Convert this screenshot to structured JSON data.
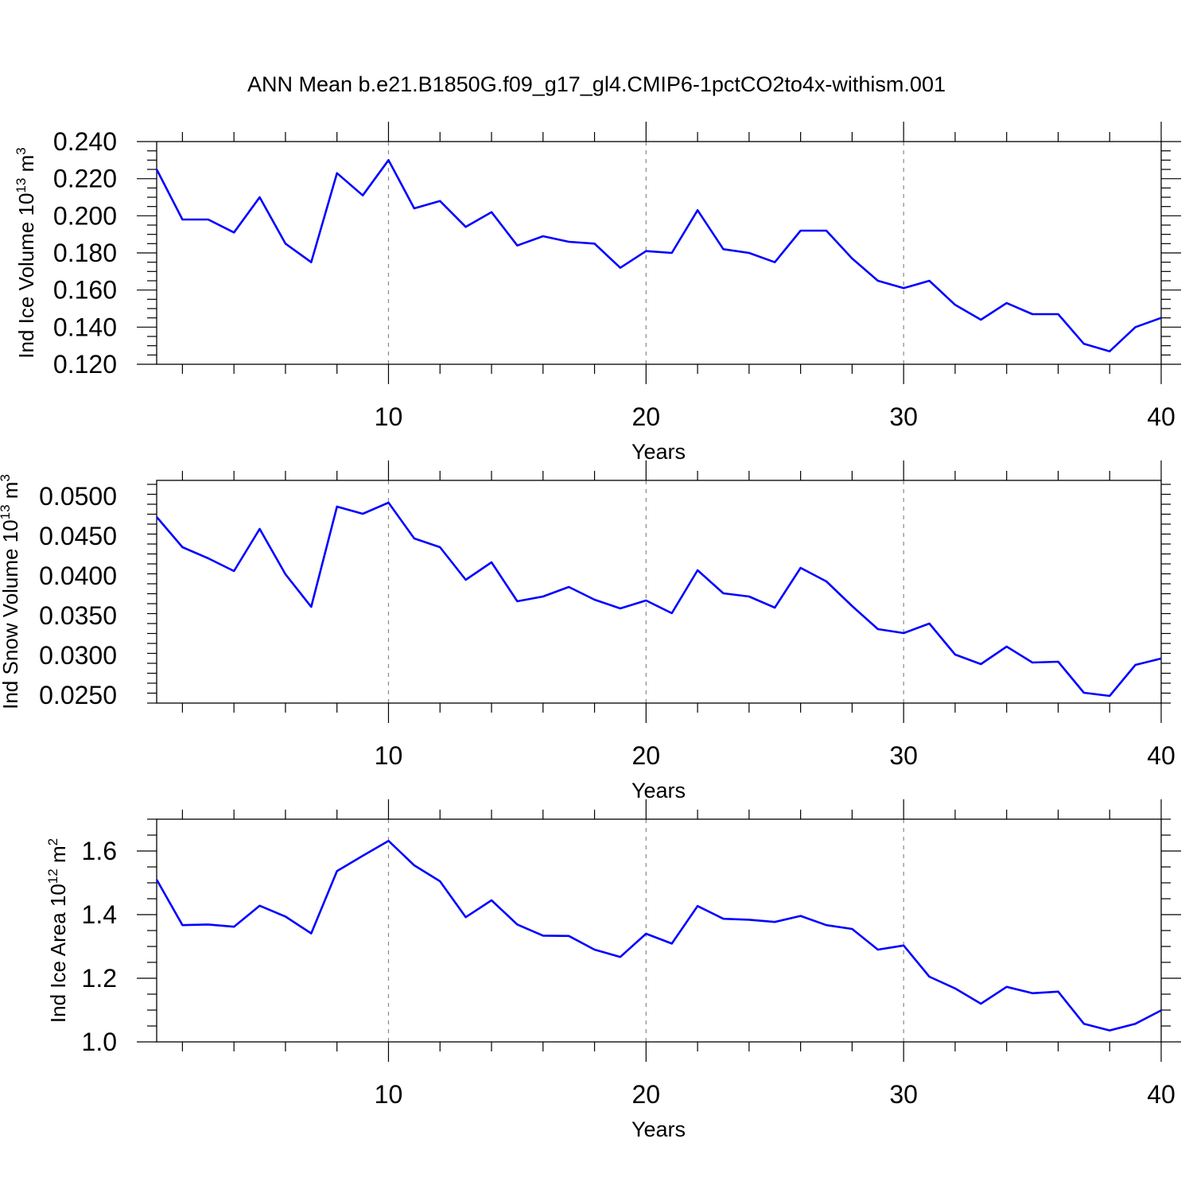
{
  "title": "ANN Mean b.e21.B1850G.f09_g17_gl4.CMIP6-1pctCO2to4x-withism.001",
  "line_color": "#0000ff",
  "chart_data": [
    {
      "type": "line",
      "ylabel": "Ind Ice Volume 10",
      "ylabel_exp": "13",
      "ylabel_unit": " m",
      "ylabel_unit_exp": "3",
      "xlabel": "Years",
      "xlim": [
        1,
        40
      ],
      "ylim": [
        0.12,
        0.24
      ],
      "yticks": [
        "0.120",
        "0.140",
        "0.160",
        "0.180",
        "0.200",
        "0.220",
        "0.240"
      ],
      "xticks": [
        "10",
        "20",
        "30",
        "40"
      ],
      "grid": "vertical dashed at major x ticks",
      "series": [
        {
          "x": [
            1,
            2,
            3,
            4,
            5,
            6,
            7,
            8,
            9,
            10,
            11,
            12,
            13,
            14,
            15,
            16,
            17,
            18,
            19,
            20,
            21,
            22,
            23,
            24,
            25,
            26,
            27,
            28,
            29,
            30,
            31,
            32,
            33,
            34,
            35,
            36,
            37,
            38,
            39,
            40
          ],
          "values": [
            0.225,
            0.198,
            0.198,
            0.191,
            0.21,
            0.185,
            0.175,
            0.223,
            0.211,
            0.23,
            0.204,
            0.208,
            0.194,
            0.202,
            0.184,
            0.189,
            0.186,
            0.185,
            0.172,
            0.181,
            0.18,
            0.203,
            0.182,
            0.18,
            0.175,
            0.192,
            0.192,
            0.177,
            0.165,
            0.161,
            0.165,
            0.152,
            0.144,
            0.153,
            0.147,
            0.147,
            0.131,
            0.127,
            0.14,
            0.145
          ]
        }
      ]
    },
    {
      "type": "line",
      "ylabel": "Ind Snow Volume 10",
      "ylabel_exp": "13",
      "ylabel_unit": " m",
      "ylabel_unit_exp": "3",
      "xlabel": "Years",
      "xlim": [
        1,
        40
      ],
      "ylim": [
        0.024,
        0.052
      ],
      "yticks": [
        "0.0250",
        "0.0300",
        "0.0350",
        "0.0400",
        "0.0450",
        "0.0500"
      ],
      "xticks": [
        "10",
        "20",
        "30",
        "40"
      ],
      "grid": "vertical dashed at major x ticks",
      "series": [
        {
          "x": [
            1,
            2,
            3,
            4,
            5,
            6,
            7,
            8,
            9,
            10,
            11,
            12,
            13,
            14,
            15,
            16,
            17,
            18,
            19,
            20,
            21,
            22,
            23,
            24,
            25,
            26,
            27,
            28,
            29,
            30,
            31,
            32,
            33,
            34,
            35,
            36,
            37,
            38,
            39,
            40
          ],
          "values": [
            0.0474,
            0.0436,
            0.0422,
            0.0406,
            0.0459,
            0.0402,
            0.0361,
            0.0487,
            0.0478,
            0.0492,
            0.0447,
            0.0436,
            0.0395,
            0.0417,
            0.0368,
            0.0374,
            0.0386,
            0.037,
            0.0359,
            0.0369,
            0.0353,
            0.0407,
            0.0378,
            0.0374,
            0.036,
            0.041,
            0.0393,
            0.0362,
            0.0333,
            0.0328,
            0.034,
            0.0301,
            0.0289,
            0.0311,
            0.0291,
            0.0292,
            0.0253,
            0.0249,
            0.0288,
            0.0296
          ]
        }
      ]
    },
    {
      "type": "line",
      "ylabel": "Ind Ice Area 10",
      "ylabel_exp": "12",
      "ylabel_unit": " m",
      "ylabel_unit_exp": "2",
      "xlabel": "Years",
      "xlim": [
        1,
        40
      ],
      "ylim": [
        1.0,
        1.7
      ],
      "yticks": [
        "1.0",
        "1.2",
        "1.4",
        "1.6"
      ],
      "xticks": [
        "10",
        "20",
        "30",
        "40"
      ],
      "grid": "vertical dashed at major x ticks",
      "series": [
        {
          "x": [
            1,
            2,
            3,
            4,
            5,
            6,
            7,
            8,
            9,
            10,
            11,
            12,
            13,
            14,
            15,
            16,
            17,
            18,
            19,
            20,
            21,
            22,
            23,
            24,
            25,
            26,
            27,
            28,
            29,
            30,
            31,
            32,
            33,
            34,
            35,
            36,
            37,
            38,
            39,
            40
          ],
          "values": [
            1.51,
            1.367,
            1.369,
            1.362,
            1.428,
            1.394,
            1.341,
            1.537,
            1.585,
            1.632,
            1.555,
            1.505,
            1.392,
            1.445,
            1.369,
            1.334,
            1.333,
            1.29,
            1.267,
            1.34,
            1.309,
            1.427,
            1.387,
            1.384,
            1.377,
            1.396,
            1.367,
            1.355,
            1.29,
            1.303,
            1.205,
            1.168,
            1.12,
            1.173,
            1.153,
            1.158,
            1.057,
            1.036,
            1.057,
            1.099
          ]
        }
      ]
    }
  ]
}
